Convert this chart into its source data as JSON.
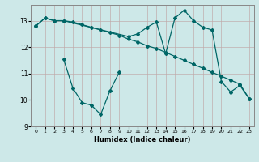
{
  "xlabel": "Humidex (Indice chaleur)",
  "background_color": "#cde8e8",
  "grid_color": "#b0c8c8",
  "line_color": "#006666",
  "xlim": [
    -0.5,
    23.5
  ],
  "ylim": [
    9.0,
    13.6
  ],
  "yticks": [
    9,
    10,
    11,
    12,
    13
  ],
  "xticks": [
    0,
    1,
    2,
    3,
    4,
    5,
    6,
    7,
    8,
    9,
    10,
    11,
    12,
    13,
    14,
    15,
    16,
    17,
    18,
    19,
    20,
    21,
    22,
    23
  ],
  "series1_x": [
    0,
    1,
    2,
    3,
    10,
    11,
    12,
    13,
    14,
    15,
    16,
    17,
    18,
    19,
    20,
    21,
    22,
    23
  ],
  "series1_y": [
    12.8,
    13.1,
    13.0,
    13.0,
    12.4,
    12.5,
    12.75,
    12.95,
    11.75,
    13.1,
    13.4,
    13.0,
    12.75,
    12.65,
    10.7,
    10.3,
    10.55,
    10.05
  ],
  "series2_x": [
    0,
    1,
    2,
    3,
    4,
    5,
    6,
    7,
    8,
    9,
    10,
    11,
    12,
    13,
    14,
    15,
    16,
    17,
    18,
    19,
    20,
    21,
    22,
    23
  ],
  "series2_y": [
    12.8,
    13.1,
    13.0,
    13.0,
    12.95,
    12.85,
    12.75,
    12.65,
    12.55,
    12.45,
    12.3,
    12.2,
    12.05,
    11.95,
    11.8,
    11.65,
    11.5,
    11.35,
    11.2,
    11.05,
    10.9,
    10.75,
    10.6,
    10.05
  ],
  "series3_x": [
    3,
    4,
    5,
    6,
    7,
    8,
    9
  ],
  "series3_y": [
    11.55,
    10.45,
    9.9,
    9.8,
    9.45,
    10.35,
    11.05
  ]
}
